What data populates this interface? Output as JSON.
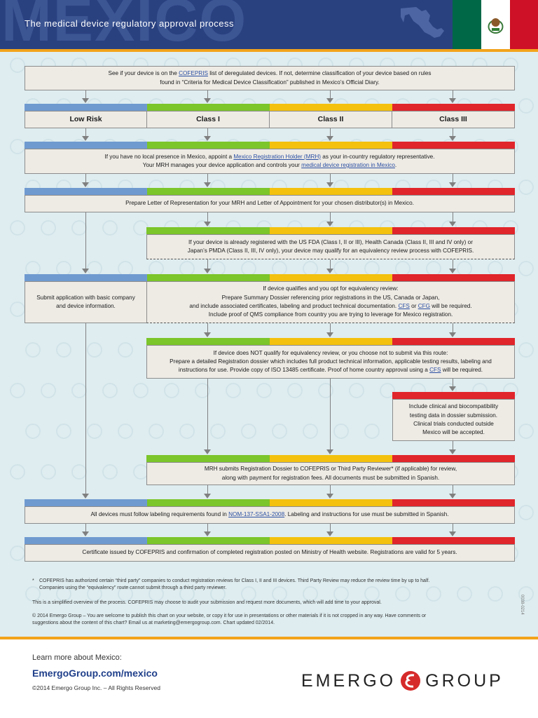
{
  "header": {
    "country": "MEXICO",
    "title": "The medical device regulatory approval process"
  },
  "colors": {
    "blue": "#6f9ad0",
    "green": "#7cc52a",
    "yellow": "#f3c10e",
    "red": "#e0252b",
    "header_bg": "#2a4180",
    "orange_rule": "#f2a31b"
  },
  "steps": {
    "s1_pre": "See if your device is on the ",
    "s1_link": "COFEPRIS",
    "s1_post": " list of deregulated devices. If not, determine classification of your device based on rules",
    "s1_line2": "found in “Criteria for Medical Device Classification” published in Mexico’s Official Diary.",
    "risk_low": "Low Risk",
    "risk_c1": "Class I",
    "risk_c2": "Class II",
    "risk_c3": "Class III",
    "s3_pre": "If you have no local presence in Mexico, appoint a ",
    "s3_link": "Mexico Registration Holder (MRH)",
    "s3_post": " as your in-country regulatory representative.",
    "s3_l2_pre": "Your MRH manages your device application  and controls your ",
    "s3_l2_link": "medical device registration in Mexico",
    "s3_l2_post": ".",
    "s4": "Prepare Letter of Representation for your MRH and Letter of Appointment for your chosen distributor(s) in Mexico.",
    "s5_l1": "If your device is already registered with the US FDA (Class I, II or III), Health Canada (Class II, III and IV only) or",
    "s5_l2": "Japan’s PMDA (Class II, III, IV only), your device may qualify for an equivalency review process with COFEPRIS.",
    "s6_low_l1": "Submit application with basic company",
    "s6_low_l2": "and device information.",
    "s6_l1": "If device qualifies and you opt for equivalency review:",
    "s6_l2": "Prepare Summary Dossier referencing prior registrations in the US, Canada or Japan,",
    "s6_l3_pre": "and include associated certificates, labeling and product technical documentation. ",
    "s6_l3_link1": "CFS",
    "s6_l3_mid": " or ",
    "s6_l3_link2": "CFG",
    "s6_l3_post": " will be required.",
    "s6_l4": "Include proof of QMS compliance from country you are trying to leverage for Mexico registration.",
    "s7_l1": "If device does NOT qualify for equivalency review, or you choose not to submit via this route:",
    "s7_l2": "Prepare a detailed Registration dossier which includes full product technical information, applicable testing results, labeling and",
    "s7_l3_pre": "instructions for use. Provide copy of ISO 13485 certificate. Proof of home country approval using a ",
    "s7_l3_link": "CFS",
    "s7_l3_post": " will be required.",
    "s8_l1": "Include clinical and biocompatibility",
    "s8_l2": "testing data in dossier submission.",
    "s8_l3": "Clinical trials conducted outside",
    "s8_l4": "Mexico will be accepted.",
    "s9_l1": "MRH submits Registration Dossier to COFEPRIS or Third Party Reviewer* (if applicable) for review,",
    "s9_l2": "along with payment for registration fees. All documents must be submitted in Spanish.",
    "s10_pre": "All devices must follow labeling requirements found in ",
    "s10_link": "NOM-137-SSA1-2008",
    "s10_post": ". Labeling and instructions for use must be submitted in Spanish.",
    "s11": "Certificate issued by COFEPRIS and confirmation of completed registration posted on Ministry of Health website. Registrations are valid for 5 years."
  },
  "footnotes": {
    "star": "*",
    "n1_l1": "COFEPRIS has authorized certain “third party” companies to conduct registration reviews for Class I, II and III devices. Third Party Review may reduce the review time by up to half.",
    "n1_l2": "Companies using the “equivalency” route cannot submit through a third party reviewer.",
    "n2": "This is a simplified overview of the process. COFEPRIS may choose to audit your submission and request more documents, which will add time to your approval.",
    "n3_l1": "© 2014 Emergo Group – You are welcome to publish this chart on your website, or copy it for use in presentations or other materials if it is not cropped in any way. Have comments or",
    "n3_l2": "suggestions about the content of this chart? Email us at marketing@emergogroup.com. Chart updated 02/2014.",
    "side_code": "0038-0214"
  },
  "bottom": {
    "learn": "Learn more about Mexico:",
    "site": "EmergoGroup.com/mexico",
    "copyright": "©2014 Emergo Group Inc. – All Rights Reserved",
    "logo_left": "EMERGO",
    "logo_right": "GROUP"
  }
}
